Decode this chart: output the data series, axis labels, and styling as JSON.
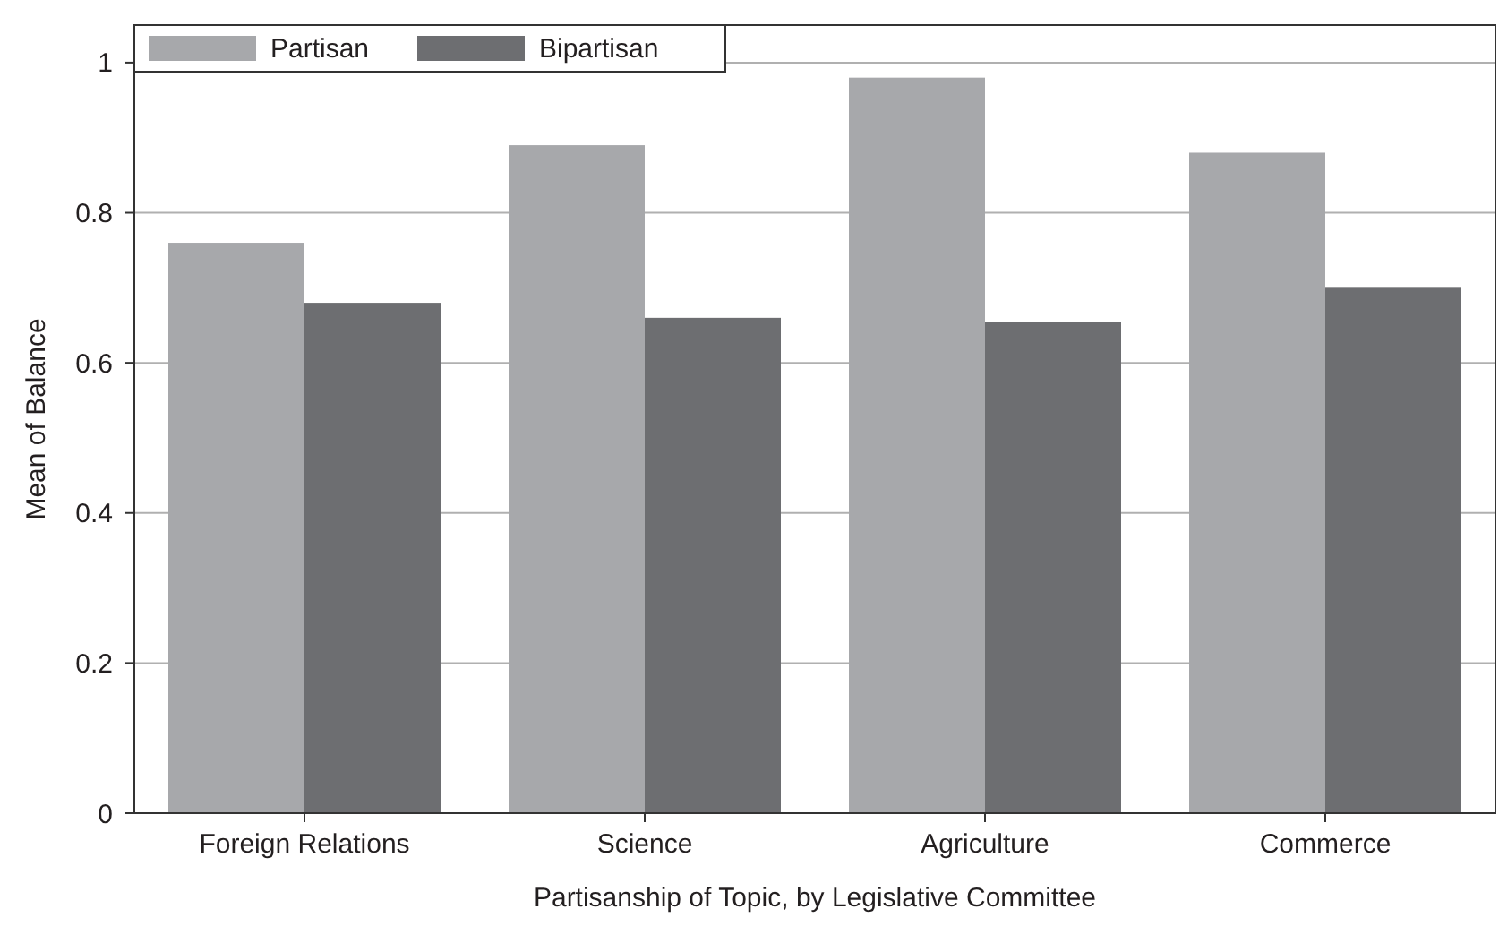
{
  "chart_data": {
    "type": "bar",
    "xlabel": "Partisanship of Topic, by Legislative Committee",
    "ylabel": "Mean of Balance",
    "categories": [
      "Foreign Relations",
      "Science",
      "Agriculture",
      "Commerce"
    ],
    "series": [
      {
        "name": "Partisan",
        "color": "#a7a8ab",
        "values": [
          0.76,
          0.89,
          0.98,
          0.88
        ]
      },
      {
        "name": "Bipartisan",
        "color": "#6d6e71",
        "values": [
          0.68,
          0.66,
          0.655,
          0.7
        ]
      }
    ],
    "ylim": [
      0,
      1.05
    ],
    "yticks": [
      0,
      0.2,
      0.4,
      0.6,
      0.8,
      1
    ],
    "grid": "y",
    "legend": "top left"
  }
}
